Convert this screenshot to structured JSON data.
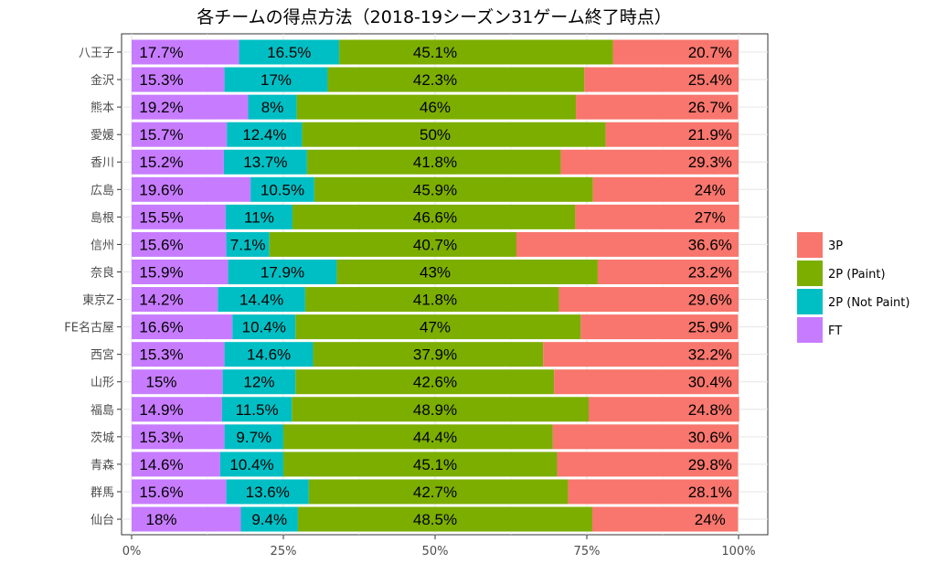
{
  "chart_data": {
    "type": "bar",
    "orientation": "horizontal",
    "stacked": "percent",
    "title": "各チームの得点方法（2018-19シーズン31ゲーム終了時点）",
    "xlabel": "",
    "ylabel": "",
    "xlim": [
      0,
      100
    ],
    "x_ticks": [
      "0%",
      "25%",
      "50%",
      "75%",
      "100%"
    ],
    "grid": true,
    "legend_position": "right",
    "categories": [
      "八王子",
      "金沢",
      "熊本",
      "愛媛",
      "香川",
      "広島",
      "島根",
      "信州",
      "奈良",
      "東京Z",
      "FE名古屋",
      "西宮",
      "山形",
      "福島",
      "茨城",
      "青森",
      "群馬",
      "仙台"
    ],
    "series": [
      {
        "name": "FT",
        "color": "#C77CFF",
        "values": [
          17.7,
          15.3,
          19.2,
          15.7,
          15.2,
          19.6,
          15.5,
          15.6,
          15.9,
          14.2,
          16.6,
          15.3,
          15,
          14.9,
          15.3,
          14.6,
          15.6,
          18
        ]
      },
      {
        "name": "2P (Not Paint)",
        "color": "#00BFC4",
        "values": [
          16.5,
          17,
          8,
          12.4,
          13.7,
          10.5,
          11,
          7.1,
          17.9,
          14.4,
          10.4,
          14.6,
          12,
          11.5,
          9.7,
          10.4,
          13.6,
          9.4
        ]
      },
      {
        "name": "2P (Paint)",
        "color": "#7CAE00",
        "values": [
          45.1,
          42.3,
          46,
          50,
          41.8,
          45.9,
          46.6,
          40.7,
          43,
          41.8,
          47,
          37.9,
          42.6,
          48.9,
          44.4,
          45.1,
          42.7,
          48.5
        ]
      },
      {
        "name": "3P",
        "color": "#F8766D",
        "values": [
          20.7,
          25.4,
          26.7,
          21.9,
          29.3,
          24,
          27,
          36.6,
          23.2,
          29.6,
          25.9,
          32.2,
          30.4,
          24.8,
          30.6,
          29.8,
          28.1,
          24
        ]
      }
    ],
    "legend_order": [
      "3P",
      "2P (Paint)",
      "2P (Not Paint)",
      "FT"
    ]
  }
}
